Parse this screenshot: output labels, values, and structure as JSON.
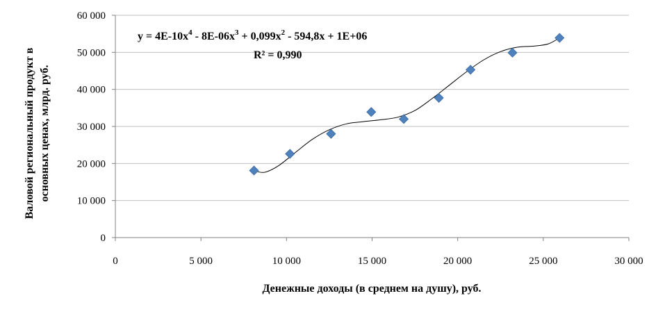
{
  "chart_data": {
    "type": "scatter",
    "title": "",
    "xlabel": "Денежные доходы (в среднем на душу), руб.",
    "ylabel_line1": "Валовой региональный продукт в",
    "ylabel_line2": "основных ценах, млрд. руб.",
    "xlim": [
      0,
      30000
    ],
    "ylim": [
      0,
      60000
    ],
    "x_ticks": [
      0,
      5000,
      10000,
      15000,
      20000,
      25000,
      30000
    ],
    "y_ticks": [
      0,
      10000,
      20000,
      30000,
      40000,
      50000,
      60000
    ],
    "x_tick_labels": [
      "0",
      "5 000",
      "10 000",
      "15 000",
      "20 000",
      "25 000",
      "30 000"
    ],
    "y_tick_labels": [
      "0",
      "10 000",
      "20 000",
      "30 000",
      "40 000",
      "50 000",
      "60 000"
    ],
    "grid": "horizontal",
    "legend": "none",
    "series": [
      {
        "marker": "diamond",
        "color": "#4f81bd",
        "points": [
          {
            "x": 8100,
            "y": 18100
          },
          {
            "x": 10200,
            "y": 22600
          },
          {
            "x": 12600,
            "y": 28000
          },
          {
            "x": 14950,
            "y": 33900
          },
          {
            "x": 16850,
            "y": 32000
          },
          {
            "x": 18900,
            "y": 37700
          },
          {
            "x": 20750,
            "y": 45300
          },
          {
            "x": 23200,
            "y": 49900
          },
          {
            "x": 25950,
            "y": 53900
          }
        ]
      }
    ],
    "trendline": {
      "type": "polynomial",
      "order": 4,
      "color": "#000000",
      "curve": [
        {
          "x": 8100,
          "y": 18100
        },
        {
          "x": 8700,
          "y": 17600
        },
        {
          "x": 9500,
          "y": 19300
        },
        {
          "x": 10500,
          "y": 22900
        },
        {
          "x": 11500,
          "y": 26500
        },
        {
          "x": 12500,
          "y": 29100
        },
        {
          "x": 13500,
          "y": 30700
        },
        {
          "x": 14500,
          "y": 31300
        },
        {
          "x": 15500,
          "y": 31800
        },
        {
          "x": 16500,
          "y": 32500
        },
        {
          "x": 17500,
          "y": 34300
        },
        {
          "x": 18500,
          "y": 37500
        },
        {
          "x": 19500,
          "y": 41100
        },
        {
          "x": 20500,
          "y": 44700
        },
        {
          "x": 21500,
          "y": 47900
        },
        {
          "x": 22500,
          "y": 50200
        },
        {
          "x": 23500,
          "y": 51400
        },
        {
          "x": 24500,
          "y": 51700
        },
        {
          "x": 25300,
          "y": 52300
        },
        {
          "x": 25950,
          "y": 53900
        }
      ]
    },
    "annotations": {
      "equation": "y = 4E-10x",
      "eq_sup1": "4",
      "eq_part2": " - 8E-06x",
      "eq_sup2": "3",
      "eq_part3": " + 0,099x",
      "eq_sup3": "2",
      "eq_part4": " - 594,8x + 1E+06",
      "r2": "R² = 0,990"
    }
  }
}
